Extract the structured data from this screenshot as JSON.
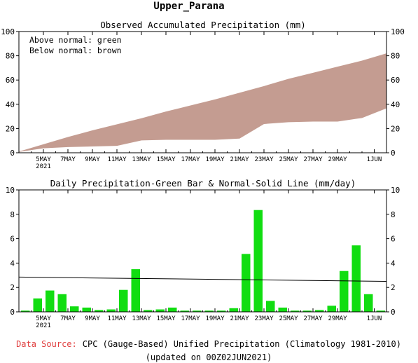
{
  "title": "Upper_Parana",
  "chart_data": [
    {
      "type": "area",
      "subtitle": "Observed Accumulated Precipitation (mm)",
      "legend": [
        "Above normal: green",
        "Below normal: brown"
      ],
      "legend_position": "top-left",
      "y_ticks": [
        "0",
        "20",
        "40",
        "60",
        "80",
        "100"
      ],
      "ylim": [
        0,
        100
      ],
      "x_tick_labels": [
        "5MAY",
        "7MAY",
        "9MAY",
        "11MAY",
        "13MAY",
        "15MAY",
        "17MAY",
        "19MAY",
        "21MAY",
        "23MAY",
        "25MAY",
        "27MAY",
        "29MAY",
        "1JUN"
      ],
      "x_tick_days": [
        2,
        4,
        6,
        8,
        10,
        12,
        14,
        16,
        18,
        20,
        22,
        24,
        26,
        29
      ],
      "year_label": "2021",
      "xlim": [
        0,
        30
      ],
      "days": [
        0,
        2,
        4,
        6,
        8,
        10,
        12,
        14,
        16,
        18,
        20,
        22,
        24,
        26,
        28,
        30
      ],
      "normal": [
        1,
        7,
        13,
        18.5,
        23.5,
        28.5,
        34,
        39,
        44,
        49.5,
        55,
        61,
        66,
        71,
        76,
        82
      ],
      "observed": [
        1,
        4,
        5,
        5.5,
        6,
        10.5,
        11,
        11,
        11,
        12,
        24,
        25.5,
        26,
        26,
        29,
        37
      ],
      "colors": {
        "below_normal": "#c49c91",
        "above_normal": "#00dd00"
      }
    },
    {
      "type": "bar",
      "subtitle": "Daily Precipitation-Green Bar & Normal-Solid Line (mm/day)",
      "y_ticks": [
        "0",
        "2",
        "4",
        "6",
        "8",
        "10"
      ],
      "ylim": [
        0,
        10
      ],
      "x_tick_labels": [
        "5MAY",
        "7MAY",
        "9MAY",
        "11MAY",
        "13MAY",
        "15MAY",
        "17MAY",
        "19MAY",
        "21MAY",
        "23MAY",
        "25MAY",
        "27MAY",
        "29MAY",
        "1JUN"
      ],
      "x_tick_days": [
        2,
        4,
        6,
        8,
        10,
        12,
        14,
        16,
        18,
        20,
        22,
        24,
        26,
        29
      ],
      "year_label": "2021",
      "xlim": [
        0,
        30
      ],
      "values": [
        0.1,
        1.1,
        1.75,
        1.45,
        0.45,
        0.35,
        0.15,
        0.2,
        1.8,
        3.5,
        0.15,
        0.2,
        0.35,
        0.1,
        0.1,
        0.1,
        0.1,
        0.3,
        4.75,
        8.35,
        0.9,
        0.35,
        0.1,
        0.1,
        0.15,
        0.5,
        3.35,
        5.45,
        1.45,
        0.1
      ],
      "normal_line": [
        2.85,
        2.5
      ],
      "bar_color": "#11dd11"
    }
  ],
  "footer": {
    "source_label": "Data Source:",
    "source_text": "CPC (Gauge-Based) Unified Precipitation (Climatology 1981-2010)",
    "updated": "(updated on 00Z02JUN2021)"
  }
}
